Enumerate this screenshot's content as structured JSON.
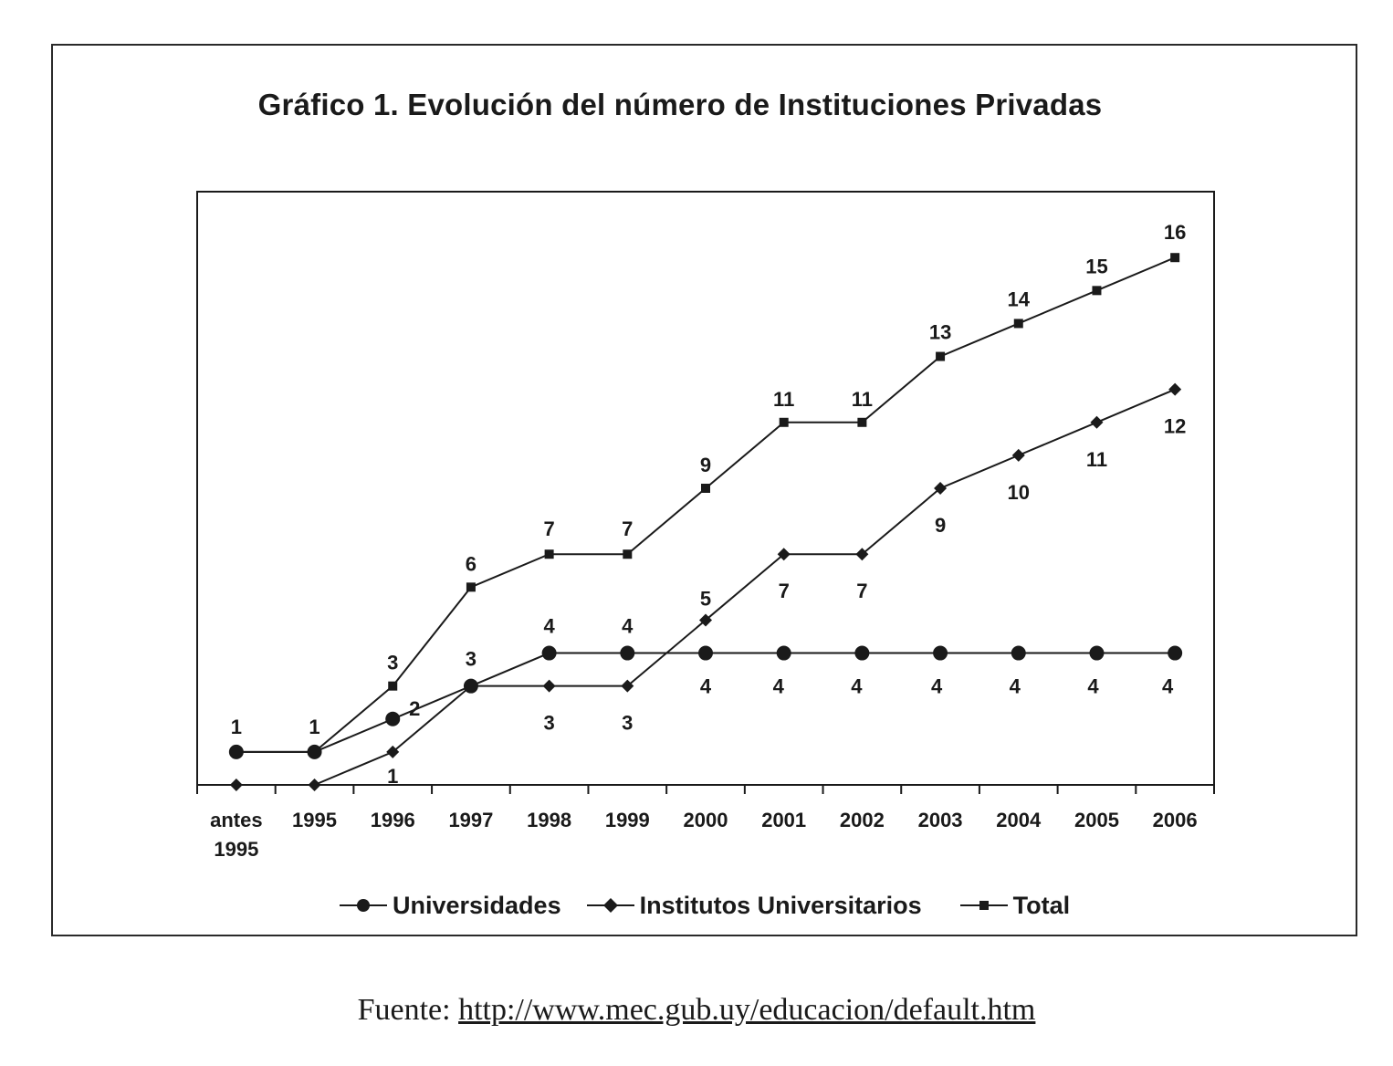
{
  "chart_data": {
    "type": "line",
    "title": "Gráfico 1. Evolución del número de Instituciones Privadas",
    "categories": [
      "antes\n1995",
      "1995",
      "1996",
      "1997",
      "1998",
      "1999",
      "2000",
      "2001",
      "2002",
      "2003",
      "2004",
      "2005",
      "2006"
    ],
    "xlabel": "",
    "ylabel": "",
    "ylim": [
      0,
      18
    ],
    "grid": false,
    "legend_position": "bottom",
    "series": [
      {
        "name": "Universidades",
        "marker": "circle",
        "values": [
          1,
          1,
          2,
          3,
          4,
          4,
          4,
          4,
          4,
          4,
          4,
          4,
          4
        ],
        "labels": [
          "1",
          "1",
          "2",
          "3",
          "4",
          "4",
          "4",
          "4",
          "4",
          "4",
          "4",
          "4",
          "4"
        ]
      },
      {
        "name": "Institutos Universitarios",
        "marker": "diamond",
        "values": [
          0,
          0,
          1,
          3,
          3,
          3,
          5,
          7,
          7,
          9,
          10,
          11,
          12
        ],
        "labels": [
          "",
          "",
          "1",
          "",
          "3",
          "3",
          "5",
          "7",
          "7",
          "9",
          "10",
          "11",
          "12"
        ]
      },
      {
        "name": "Total",
        "marker": "square",
        "values": [
          1,
          1,
          3,
          6,
          7,
          7,
          9,
          11,
          11,
          13,
          14,
          15,
          16
        ],
        "labels": [
          "",
          "",
          "3",
          "6",
          "7",
          "7",
          "9",
          "11",
          "11",
          "13",
          "14",
          "15",
          "16"
        ]
      }
    ],
    "line_color": "#1a1a1a"
  },
  "source": {
    "prefix": "Fuente: ",
    "url_text": "http://www.mec.gub.uy/educacion/default.htm"
  }
}
